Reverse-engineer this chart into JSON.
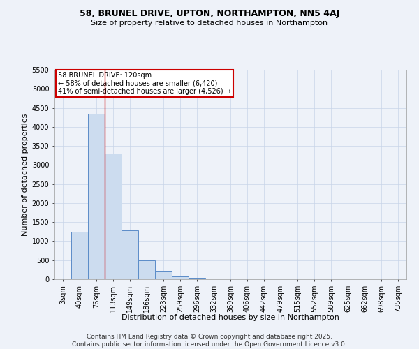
{
  "title1": "58, BRUNEL DRIVE, UPTON, NORTHAMPTON, NN5 4AJ",
  "title2": "Size of property relative to detached houses in Northampton",
  "xlabel": "Distribution of detached houses by size in Northampton",
  "ylabel": "Number of detached properties",
  "categories": [
    "3sqm",
    "40sqm",
    "76sqm",
    "113sqm",
    "149sqm",
    "186sqm",
    "223sqm",
    "259sqm",
    "296sqm",
    "332sqm",
    "369sqm",
    "406sqm",
    "442sqm",
    "479sqm",
    "515sqm",
    "552sqm",
    "589sqm",
    "625sqm",
    "662sqm",
    "698sqm",
    "735sqm"
  ],
  "values": [
    0,
    1250,
    4350,
    3300,
    1280,
    500,
    220,
    80,
    40,
    0,
    0,
    0,
    0,
    0,
    0,
    0,
    0,
    0,
    0,
    0,
    0
  ],
  "bar_color": "#ccdcef",
  "bar_edge_color": "#5b8cc8",
  "ylim": [
    0,
    5500
  ],
  "yticks": [
    0,
    500,
    1000,
    1500,
    2000,
    2500,
    3000,
    3500,
    4000,
    4500,
    5000,
    5500
  ],
  "vline_x": 2.5,
  "vline_color": "#cc0000",
  "annotation_line0": "58 BRUNEL DRIVE: 120sqm",
  "annotation_line1": "← 58% of detached houses are smaller (6,420)",
  "annotation_line2": "41% of semi-detached houses are larger (4,526) →",
  "annotation_box_edgecolor": "#cc0000",
  "footer1": "Contains HM Land Registry data © Crown copyright and database right 2025.",
  "footer2": "Contains public sector information licensed under the Open Government Licence v3.0.",
  "bg_color": "#eef2f9",
  "grid_color": "#c8d4e8",
  "title_fontsize": 9,
  "subtitle_fontsize": 8,
  "footer_fontsize": 6.5,
  "axis_label_fontsize": 8,
  "tick_fontsize": 7,
  "annot_fontsize": 7
}
